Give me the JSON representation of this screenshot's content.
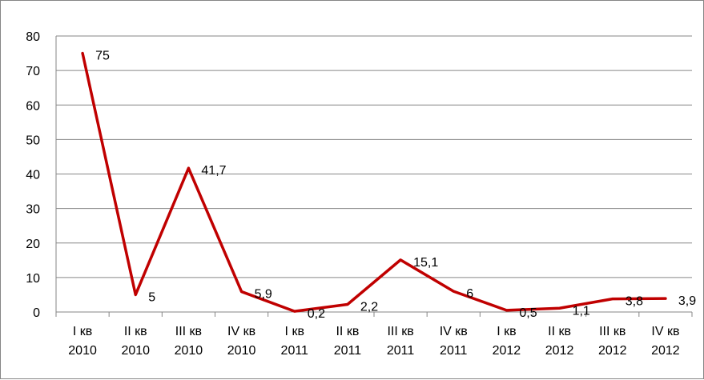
{
  "chart_data": {
    "type": "line",
    "categories": [
      [
        "I кв",
        "2010"
      ],
      [
        "II кв",
        "2010"
      ],
      [
        "III кв",
        "2010"
      ],
      [
        "IV кв",
        "2010"
      ],
      [
        "I кв",
        "2011"
      ],
      [
        "II кв",
        "2011"
      ],
      [
        "III кв",
        "2011"
      ],
      [
        "IV кв",
        "2011"
      ],
      [
        "I кв",
        "2012"
      ],
      [
        "II кв",
        "2012"
      ],
      [
        "III кв",
        "2012"
      ],
      [
        "IV кв",
        "2012"
      ]
    ],
    "values": [
      75,
      5,
      41.7,
      5.9,
      0.2,
      2.2,
      15.1,
      6,
      0.5,
      1.1,
      3.8,
      3.9
    ],
    "data_labels": [
      "75",
      "5",
      "41,7",
      "5,9",
      "0,2",
      "2,2",
      "15,1",
      "6",
      "0,5",
      "1,1",
      "3,8",
      "3,9"
    ],
    "y_ticks": [
      "0",
      "10",
      "20",
      "30",
      "40",
      "50",
      "60",
      "70",
      "80"
    ],
    "ylim": [
      0,
      80
    ],
    "grid": true,
    "legend": "none",
    "colors": {
      "line": "#C00000",
      "grid": "#868686",
      "axis": "#868686"
    }
  }
}
